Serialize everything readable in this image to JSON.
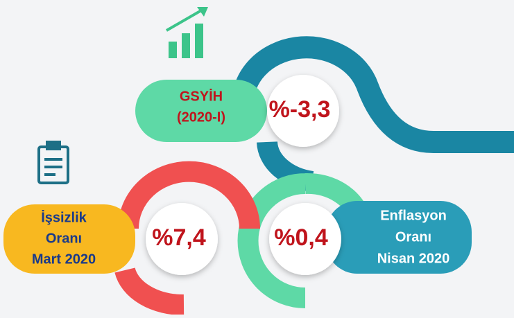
{
  "items": [
    {
      "label": [
        "GSYİH",
        "(2020-I)"
      ],
      "value": "%-3,3"
    },
    {
      "label": [
        "İşsizlik",
        "Oranı",
        "Mart 2020"
      ],
      "value": "%7,4"
    },
    {
      "label": [
        "Enflasyon",
        "Oranı",
        "Nisan 2020"
      ],
      "value": "%0,4"
    }
  ]
}
